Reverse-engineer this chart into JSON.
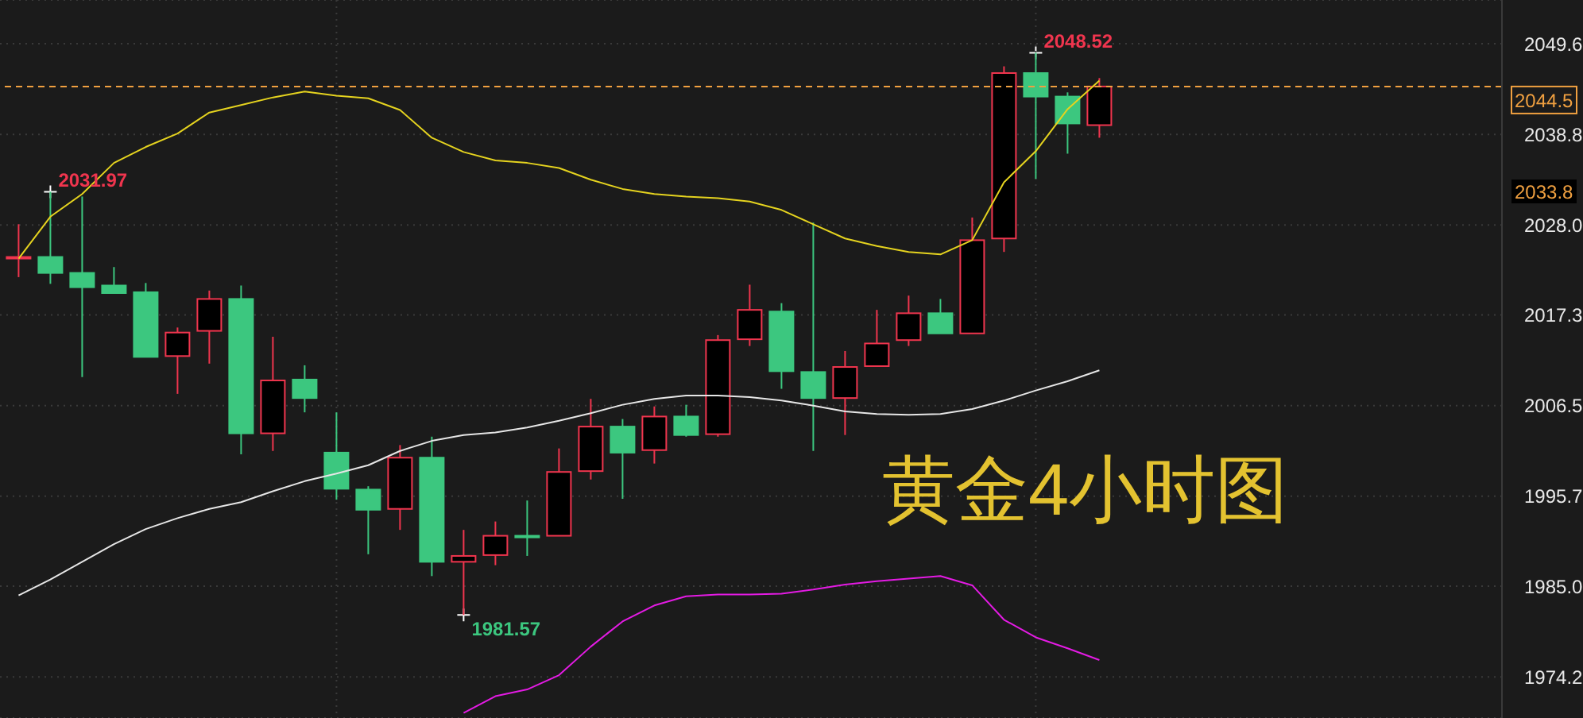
{
  "chart_data": {
    "type": "candlestick",
    "title": "黄金4小时图",
    "categories": [
      null,
      null,
      null,
      null,
      null,
      null,
      null,
      null,
      null,
      null,
      null,
      null,
      null,
      null,
      null,
      null,
      null,
      null,
      null,
      null,
      null,
      null,
      null,
      null,
      null,
      null,
      null,
      null,
      null,
      null,
      null,
      null,
      null,
      null,
      null
    ],
    "ohlc": [
      [
        2024.1,
        2028.1,
        2021.8,
        2024.2
      ],
      [
        2024.2,
        2031.97,
        2021.0,
        2022.3
      ],
      [
        2022.3,
        2031.4,
        2009.9,
        2020.6
      ],
      [
        2020.8,
        2023.0,
        2019.9,
        2019.9
      ],
      [
        2020.0,
        2021.1,
        2012.3,
        2012.3
      ],
      [
        2012.4,
        2015.8,
        2007.9,
        2015.2
      ],
      [
        2015.4,
        2020.2,
        2011.5,
        2019.2
      ],
      [
        2019.2,
        2020.8,
        2000.7,
        2003.2
      ],
      [
        2003.2,
        2014.7,
        2001.1,
        2009.5
      ],
      [
        2009.6,
        2011.3,
        2005.7,
        2007.4
      ],
      [
        2000.9,
        2005.7,
        1995.3,
        1996.6
      ],
      [
        1996.5,
        1996.9,
        1988.8,
        1994.1
      ],
      [
        1994.2,
        2001.8,
        1991.7,
        2000.3
      ],
      [
        2000.3,
        2002.8,
        1986.2,
        1987.9
      ],
      [
        1987.9,
        1991.7,
        1981.57,
        1988.6
      ],
      [
        1988.7,
        1992.7,
        1987.5,
        1991.0
      ],
      [
        1991.0,
        1995.2,
        1988.6,
        1990.9
      ],
      [
        1991.0,
        2001.4,
        1991.0,
        1998.6
      ],
      [
        1998.7,
        2007.3,
        1997.7,
        2004.0
      ],
      [
        2004.0,
        2004.9,
        1995.4,
        2000.9
      ],
      [
        2001.2,
        2006.4,
        1999.6,
        2005.2
      ],
      [
        2005.2,
        2006.6,
        2002.8,
        2003.0
      ],
      [
        2003.1,
        2014.9,
        2002.8,
        2014.3
      ],
      [
        2014.4,
        2020.9,
        2013.6,
        2017.9
      ],
      [
        2017.7,
        2018.7,
        2008.5,
        2010.6
      ],
      [
        2010.5,
        2028.3,
        2001.1,
        2007.4
      ],
      [
        2007.4,
        2013.0,
        2003.0,
        2011.1
      ],
      [
        2011.2,
        2017.9,
        2011.2,
        2013.9
      ],
      [
        2014.3,
        2019.6,
        2013.6,
        2017.5
      ],
      [
        2017.5,
        2019.2,
        2015.1,
        2015.1
      ],
      [
        2015.1,
        2028.9,
        2015.1,
        2026.2
      ],
      [
        2026.4,
        2046.9,
        2024.8,
        2046.1
      ],
      [
        2046.1,
        2048.52,
        2033.5,
        2043.3
      ],
      [
        2043.3,
        2043.8,
        2036.5,
        2040.1
      ],
      [
        2039.9,
        2045.5,
        2038.4,
        2044.5
      ]
    ],
    "colors": [
      "#f0354e",
      "#3cc77f",
      "#3cc77f",
      "#3cc77f",
      "#3cc77f",
      "#f0354e",
      "#f0354e",
      "#3cc77f",
      "#f0354e",
      "#3cc77f",
      "#3cc77f",
      "#3cc77f",
      "#f0354e",
      "#3cc77f",
      "#f0354e",
      "#f0354e",
      "#3cc77f",
      "#f0354e",
      "#f0354e",
      "#3cc77f",
      "#f0354e",
      "#3cc77f",
      "#f0354e",
      "#f0354e",
      "#3cc77f",
      "#3cc77f",
      "#f0354e",
      "#f0354e",
      "#f0354e",
      "#3cc77f",
      "#f0354e",
      "#f0354e",
      "#3cc77f",
      "#3cc77f",
      "#f0354e"
    ],
    "series": [
      {
        "type": "line",
        "color": "#e5d31f",
        "values": [
          2024.0,
          2029.0,
          2031.7,
          2035.4,
          2037.3,
          2038.9,
          2041.4,
          2042.3,
          2043.2,
          2043.9,
          2043.4,
          2043.1,
          2041.7,
          2038.4,
          2036.7,
          2035.7,
          2035.4,
          2034.8,
          2033.4,
          2032.3,
          2031.7,
          2031.4,
          2031.2,
          2030.8,
          2029.8,
          2028.1,
          2026.4,
          2025.5,
          2024.8,
          2024.5,
          2026.2,
          2033.1,
          2036.8,
          2041.8,
          2045.2
        ]
      },
      {
        "type": "line",
        "color": "#e6e6e6",
        "values": [
          1983.9,
          1985.8,
          1987.9,
          1990.0,
          1991.8,
          1993.1,
          1994.2,
          1995.0,
          1996.3,
          1997.5,
          1998.4,
          1999.4,
          2001.1,
          2002.3,
          2003.0,
          2003.3,
          2003.9,
          2004.7,
          2005.6,
          2006.6,
          2007.3,
          2007.7,
          2007.7,
          2007.5,
          2007.1,
          2006.5,
          2005.8,
          2005.5,
          2005.4,
          2005.5,
          2006.1,
          2007.1,
          2008.3,
          2009.4,
          2010.7
        ]
      },
      {
        "type": "line",
        "color": "#e41be4",
        "values": [
          null,
          null,
          null,
          null,
          null,
          null,
          null,
          null,
          null,
          null,
          null,
          null,
          null,
          null,
          1969.9,
          1971.9,
          1972.7,
          1974.4,
          1977.8,
          1980.8,
          1982.7,
          1983.8,
          1984.0,
          1984.0,
          1984.1,
          1984.6,
          1985.2,
          1985.6,
          1985.9,
          1986.2,
          1985.1,
          1981.0,
          1978.9,
          1977.6,
          1976.2
        ]
      }
    ],
    "ylim": [
      1969.3,
      2054.8
    ],
    "yticks": [
      1974.2,
      {
        "value": 1985,
        "label": "1985.0"
      },
      1995.7,
      2006.5,
      2017.3,
      {
        "value": 2028,
        "label": "2028.0"
      },
      2038.8,
      2049.6
    ],
    "grid": "y",
    "tick_labels": "y",
    "ref_lines": [
      {
        "axis": "y",
        "value": 2044.5,
        "label": "2044.5",
        "color": "#f0a040",
        "line_style": "dashed"
      }
    ],
    "annotations": [
      "2031.97",
      "2048.52",
      "1981.57",
      "2033.8"
    ]
  }
}
